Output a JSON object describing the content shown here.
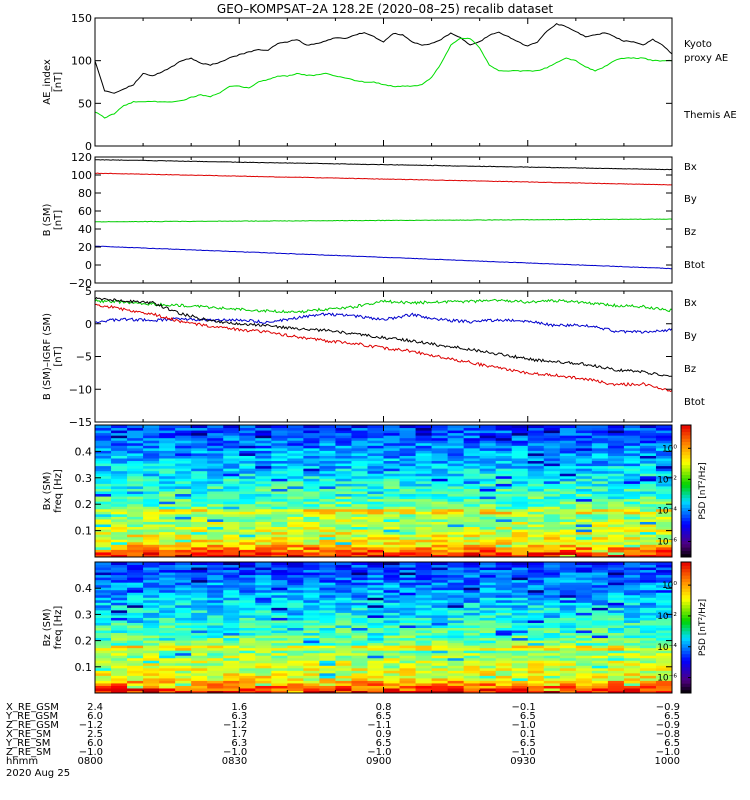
{
  "title": "GEO–KOMPSAT–2A 128.2E (2020–08–25) recalib dataset",
  "chart_data": [
    {
      "type": "line",
      "id": "ae",
      "ylabel": [
        "AE_index",
        "[nT]"
      ],
      "ylim": [
        0,
        150
      ],
      "yticks": [
        "0",
        "50",
        "100",
        "150"
      ],
      "legend": [
        {
          "name": "Kyoto",
          "color": "#00dd00"
        },
        {
          "name": "proxy AE",
          "color": "#00dd00"
        },
        {
          "name": "Themis AE",
          "color": "#000000"
        }
      ],
      "series": [
        {
          "name": "Themis AE",
          "color": "#000000",
          "x": [
            0,
            2,
            4,
            6,
            8,
            10,
            12,
            14,
            16,
            18,
            20,
            22,
            24,
            26,
            28,
            30,
            32,
            34,
            36,
            38,
            40,
            42,
            44,
            46,
            48,
            50,
            52,
            54,
            56,
            58,
            60,
            62,
            64,
            66,
            68,
            70,
            72,
            74,
            76,
            78,
            80,
            82,
            84,
            86,
            88,
            90,
            92,
            94,
            96,
            98,
            100,
            102,
            104,
            106,
            108,
            110,
            112,
            114,
            116,
            118,
            120
          ],
          "y": [
            100,
            65,
            62,
            67,
            72,
            85,
            82,
            87,
            93,
            100,
            103,
            97,
            95,
            98,
            103,
            107,
            110,
            113,
            112,
            120,
            122,
            125,
            118,
            120,
            123,
            127,
            126,
            130,
            133,
            128,
            122,
            132,
            130,
            122,
            118,
            120,
            125,
            132,
            127,
            118,
            122,
            130,
            133,
            128,
            122,
            117,
            122,
            135,
            143,
            140,
            134,
            128,
            130,
            133,
            128,
            123,
            122,
            118,
            125,
            118,
            108
          ]
        },
        {
          "name": "Kyoto proxy AE",
          "color": "#00dd00",
          "x": [
            0,
            2,
            4,
            6,
            8,
            10,
            12,
            14,
            16,
            18,
            20,
            22,
            24,
            26,
            28,
            30,
            32,
            34,
            36,
            38,
            40,
            42,
            44,
            46,
            48,
            50,
            52,
            54,
            56,
            58,
            60,
            62,
            64,
            66,
            68,
            70,
            72,
            74,
            76,
            78,
            80,
            82,
            84,
            86,
            88,
            90,
            92,
            94,
            96,
            98,
            100,
            102,
            104,
            106,
            108,
            110,
            112,
            114,
            116,
            118,
            120
          ],
          "y": [
            40,
            33,
            38,
            47,
            52,
            52,
            52,
            52,
            52,
            53,
            57,
            60,
            58,
            62,
            70,
            70,
            68,
            75,
            78,
            82,
            82,
            85,
            83,
            83,
            85,
            82,
            80,
            77,
            75,
            75,
            72,
            70,
            70,
            70,
            72,
            80,
            97,
            118,
            126,
            126,
            115,
            95,
            88,
            88,
            88,
            88,
            88,
            92,
            98,
            103,
            100,
            93,
            88,
            93,
            100,
            103,
            103,
            103,
            100,
            100,
            100
          ]
        }
      ]
    },
    {
      "type": "line",
      "id": "b",
      "ylabel": [
        "B (SM)",
        "[nT]"
      ],
      "ylim": [
        -20,
        120
      ],
      "yticks": [
        "−20",
        "0",
        "20",
        "40",
        "60",
        "80",
        "100",
        "120"
      ],
      "legend": [
        {
          "name": "Bx",
          "color": "#0000cc"
        },
        {
          "name": "By",
          "color": "#00cc00"
        },
        {
          "name": "Bz",
          "color": "#dd0000"
        },
        {
          "name": "Btot",
          "color": "#000000"
        }
      ],
      "series": [
        {
          "name": "Btot",
          "color": "#000000",
          "x": [
            0,
            120
          ],
          "y": [
            117,
            106
          ]
        },
        {
          "name": "Bz",
          "color": "#dd0000",
          "x": [
            0,
            120
          ],
          "y": [
            102,
            89
          ]
        },
        {
          "name": "By",
          "color": "#00cc00",
          "x": [
            0,
            120
          ],
          "y": [
            48,
            51
          ]
        },
        {
          "name": "Bx",
          "color": "#0000cc",
          "x": [
            0,
            120
          ],
          "y": [
            21,
            -4
          ]
        }
      ]
    },
    {
      "type": "line",
      "id": "bd",
      "ylabel": [
        "B (SM)–IGRF (SM)",
        "[nT]"
      ],
      "ylim": [
        -15,
        5
      ],
      "yticks": [
        "−15",
        "−10",
        "−5",
        "0",
        "5"
      ],
      "legend": [
        {
          "name": "Bx",
          "color": "#0000cc"
        },
        {
          "name": "By",
          "color": "#00cc00"
        },
        {
          "name": "Bz",
          "color": "#dd0000"
        },
        {
          "name": "Btot",
          "color": "#000000"
        }
      ],
      "series": [
        {
          "name": "By",
          "color": "#00cc00",
          "x": [
            0,
            6,
            12,
            18,
            24,
            30,
            36,
            42,
            48,
            54,
            60,
            66,
            72,
            78,
            84,
            90,
            96,
            102,
            108,
            114,
            120
          ],
          "y": [
            3.5,
            3.3,
            3.0,
            2.8,
            2.5,
            2.2,
            2.0,
            1.8,
            2.2,
            2.6,
            3.4,
            3.2,
            3.3,
            3.4,
            3.6,
            3.3,
            3.5,
            3.2,
            2.8,
            2.6,
            2.0
          ]
        },
        {
          "name": "Bx",
          "color": "#0000cc",
          "x": [
            0,
            6,
            12,
            18,
            24,
            30,
            36,
            42,
            48,
            54,
            60,
            66,
            72,
            78,
            84,
            90,
            96,
            102,
            108,
            114,
            120
          ],
          "y": [
            0.3,
            0.7,
            0.5,
            0.8,
            0.5,
            0.6,
            0.2,
            0.9,
            1.5,
            1.2,
            0.6,
            1.4,
            0.6,
            0.3,
            0.6,
            0.4,
            -0.3,
            -0.2,
            -1.1,
            -1.3,
            -0.9
          ]
        },
        {
          "name": "Btot",
          "color": "#000000",
          "x": [
            0,
            6,
            12,
            18,
            24,
            30,
            36,
            42,
            48,
            54,
            60,
            66,
            72,
            78,
            84,
            90,
            96,
            102,
            108,
            114,
            120
          ],
          "y": [
            3.8,
            3.5,
            3.2,
            1.5,
            0.5,
            0,
            -0.3,
            -0.8,
            -1.0,
            -1.6,
            -2.1,
            -2.6,
            -3.3,
            -3.9,
            -4.6,
            -5.4,
            -5.8,
            -6.2,
            -7.0,
            -7.3,
            -8.2
          ]
        },
        {
          "name": "Bz",
          "color": "#dd0000",
          "x": [
            0,
            6,
            12,
            18,
            24,
            30,
            36,
            42,
            48,
            54,
            60,
            66,
            72,
            78,
            84,
            90,
            96,
            102,
            108,
            114,
            120
          ],
          "y": [
            3.0,
            2.2,
            1.5,
            0.3,
            -0.4,
            -0.9,
            -1.3,
            -2.0,
            -2.6,
            -3.0,
            -3.7,
            -4.2,
            -5.1,
            -5.9,
            -6.8,
            -7.5,
            -7.9,
            -8.4,
            -9.3,
            -9.2,
            -10.3
          ]
        }
      ]
    },
    {
      "type": "heatmap",
      "id": "spx",
      "ylabel": [
        "Bx (SM)",
        "freq [Hz]"
      ],
      "ylim": [
        0,
        0.5
      ],
      "yticks": [
        "0.1",
        "0.2",
        "0.3",
        "0.4"
      ],
      "colorbar": {
        "label": "PSD [nT²/Hz]",
        "ticks": [
          "10⁰",
          "10⁻²",
          "10⁻⁴",
          "10⁻⁶"
        ],
        "range": [
          -7,
          1.5
        ]
      },
      "rows": 52,
      "cols": 36,
      "seed": 7
    },
    {
      "type": "heatmap",
      "id": "spz",
      "ylabel": [
        "Bz (SM)",
        "freq [Hz]"
      ],
      "ylim": [
        0,
        0.5
      ],
      "yticks": [
        "0.1",
        "0.2",
        "0.3",
        "0.4"
      ],
      "colorbar": {
        "label": "PSD [nT²/Hz]",
        "ticks": [
          "10⁰",
          "10⁻²",
          "10⁻⁴",
          "10⁻⁶"
        ],
        "range": [
          -7,
          1.5
        ]
      },
      "rows": 52,
      "cols": 36,
      "seed": 13
    }
  ],
  "xaxis": {
    "minutes": [
      0,
      30,
      60,
      90,
      120
    ],
    "rows": [
      {
        "label": "X_RE_GSM",
        "values": [
          "2.4",
          "1.6",
          "0.8",
          "−0.1",
          "−0.9"
        ]
      },
      {
        "label": "Y_RE_GSM",
        "values": [
          "6.0",
          "6.3",
          "6.5",
          "6.5",
          "6.5"
        ]
      },
      {
        "label": "Z_RE_GSM",
        "values": [
          "−1.2",
          "−1.2",
          "−1.1",
          "−1.0",
          "−0.9"
        ]
      },
      {
        "label": "X_RE_SM",
        "values": [
          "2.5",
          "1.7",
          "0.9",
          "0.1",
          "−0.8"
        ]
      },
      {
        "label": "Y_RE_SM",
        "values": [
          "6.0",
          "6.3",
          "6.5",
          "6.5",
          "6.5"
        ]
      },
      {
        "label": "Z_RE_SM",
        "values": [
          "−1.0",
          "−1.0",
          "−1.0",
          "−1.0",
          "−1.0"
        ]
      },
      {
        "label": "hhmm",
        "values": [
          "0800",
          "0830",
          "0900",
          "0930",
          "1000"
        ]
      }
    ],
    "date": "2020 Aug 25"
  }
}
